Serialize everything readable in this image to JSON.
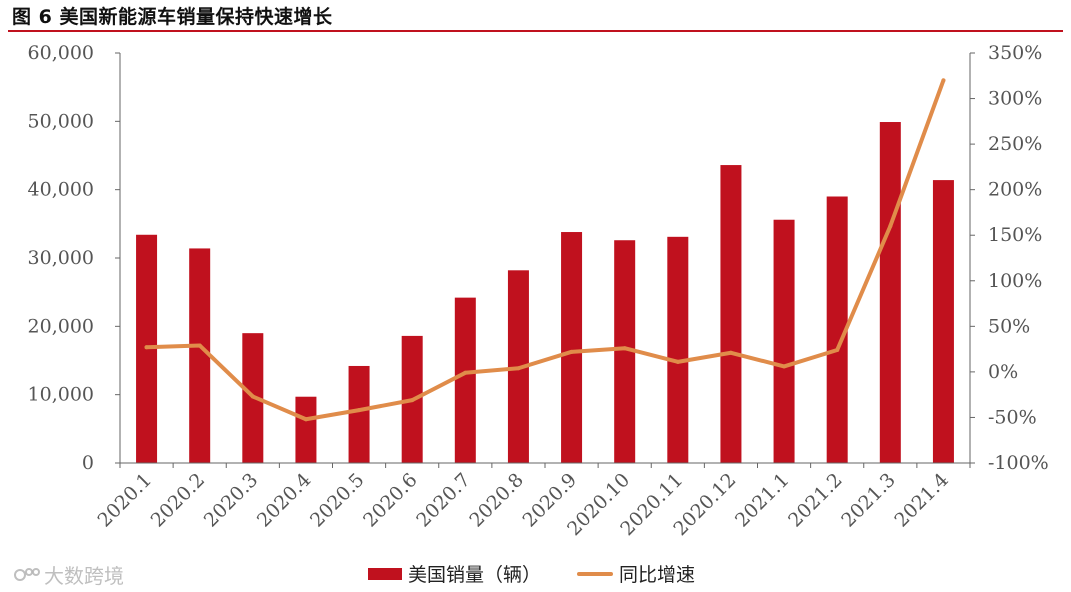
{
  "title": "图  6 美国新能源车销量保持快速增长",
  "watermark": "大数跨境",
  "colors": {
    "bar": "#c0111e",
    "line": "#e08c4a",
    "axis": "#666666",
    "rule": "#c0111e"
  },
  "chart_data": {
    "type": "bar",
    "categories": [
      "2020.1",
      "2020.2",
      "2020.3",
      "2020.4",
      "2020.5",
      "2020.6",
      "2020.7",
      "2020.8",
      "2020.9",
      "2020.10",
      "2020.11",
      "2020.12",
      "2021.1",
      "2021.2",
      "2021.3",
      "2021.4"
    ],
    "series": [
      {
        "name": "美国销量（辆）",
        "type": "bar",
        "axis": "left",
        "values": [
          33400,
          31400,
          19000,
          9700,
          14200,
          18600,
          24200,
          28200,
          33800,
          32600,
          33100,
          43600,
          35600,
          39000,
          49900,
          41400
        ]
      },
      {
        "name": "同比增速",
        "type": "line",
        "axis": "right",
        "values": [
          27,
          29,
          -27,
          -52,
          -42,
          -31,
          -1,
          4,
          22,
          26,
          11,
          21,
          6,
          24,
          160,
          320
        ]
      }
    ],
    "y_left": {
      "min": 0,
      "max": 60000,
      "ticks": [
        "0",
        "10,000",
        "20,000",
        "30,000",
        "40,000",
        "50,000",
        "60,000"
      ]
    },
    "y_right": {
      "min": -100,
      "max": 350,
      "ticks": [
        "-100%",
        "-50%",
        "0%",
        "50%",
        "100%",
        "150%",
        "200%",
        "250%",
        "300%",
        "350%"
      ]
    },
    "grid": false,
    "legend_position": "bottom"
  }
}
